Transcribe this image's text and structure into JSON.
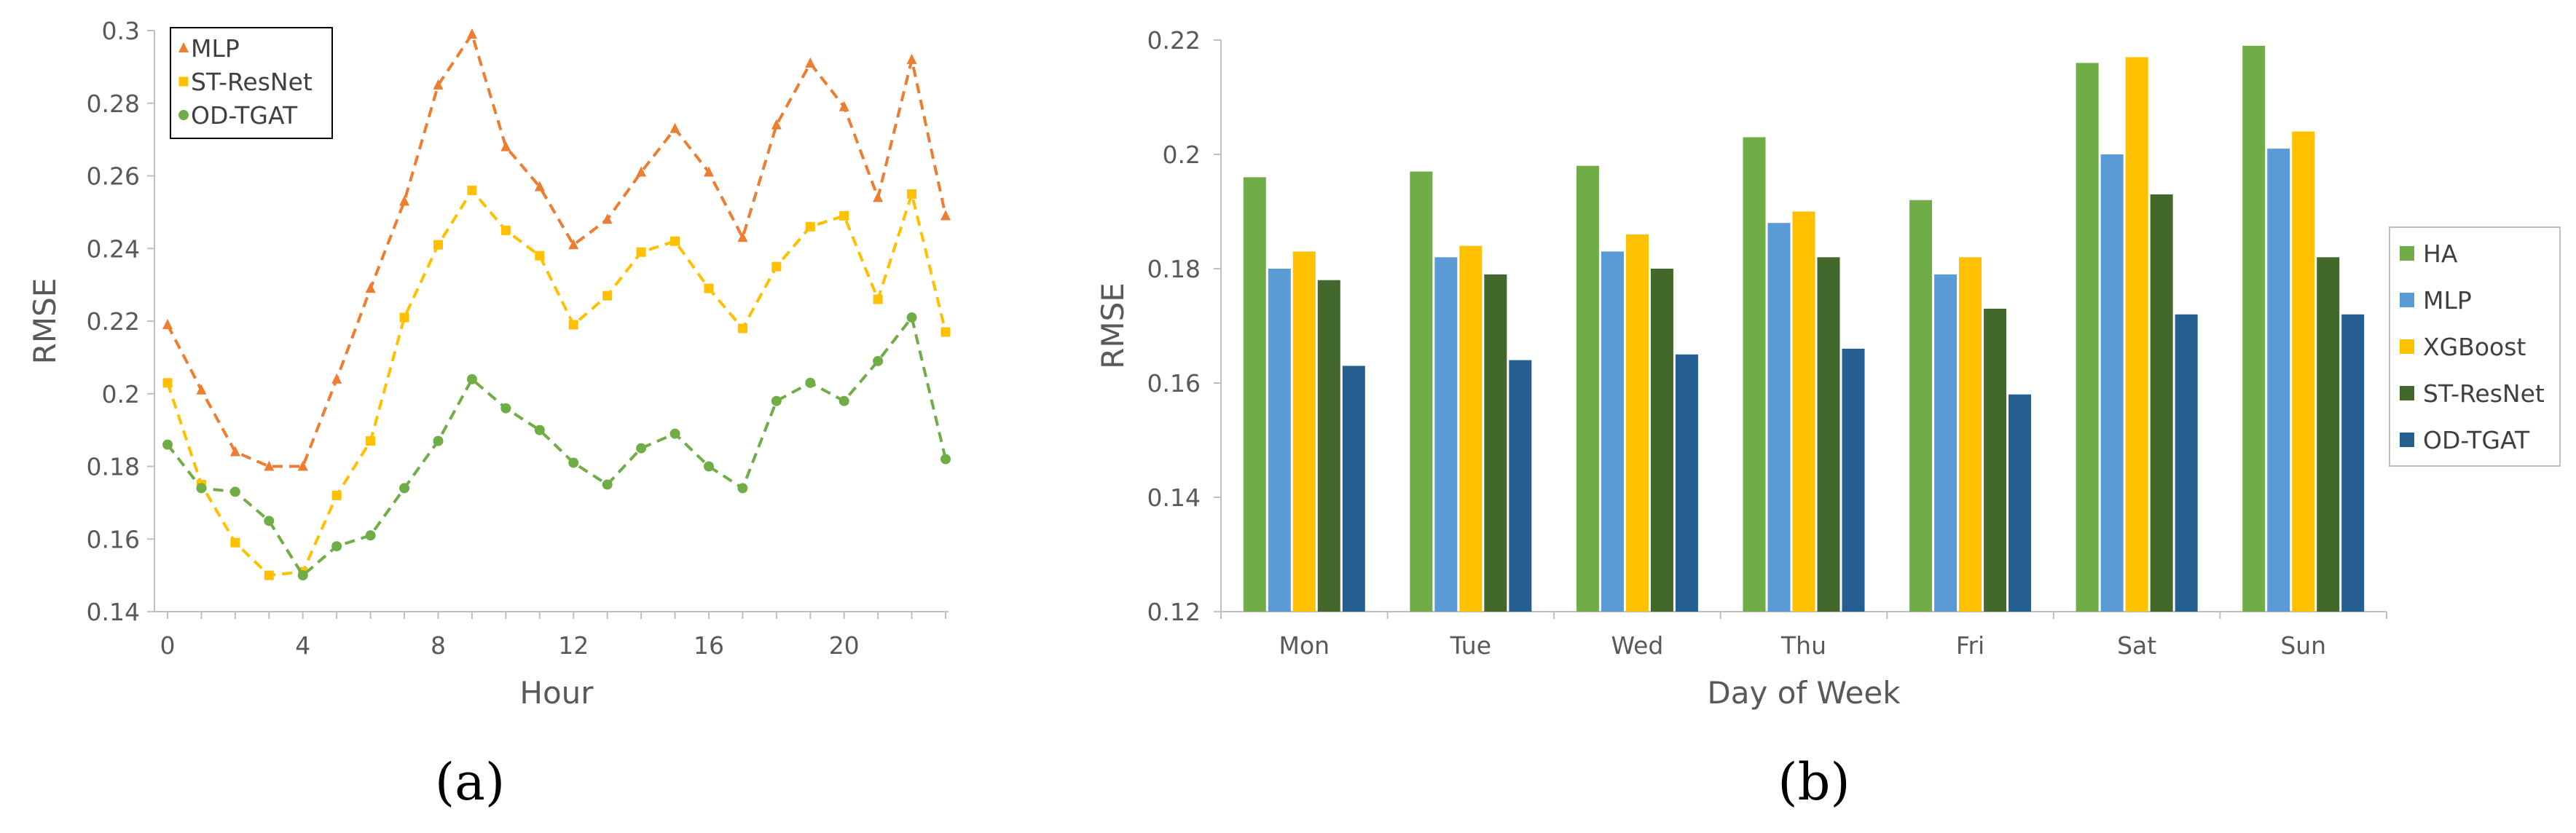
{
  "chart_data": [
    {
      "type": "line",
      "panel_label": "(a)",
      "title": "",
      "xlabel": "Hour",
      "ylabel": "RMSE",
      "ylim": [
        0.14,
        0.3
      ],
      "xlim": [
        0,
        23
      ],
      "yticks": [
        "0.14",
        "0.16",
        "0.18",
        "0.2",
        "0.22",
        "0.24",
        "0.26",
        "0.28",
        "0.3"
      ],
      "xticks": [
        "0",
        "4",
        "8",
        "12",
        "16",
        "20"
      ],
      "x": [
        0,
        1,
        2,
        3,
        4,
        5,
        6,
        7,
        8,
        9,
        10,
        11,
        12,
        13,
        14,
        15,
        16,
        17,
        18,
        19,
        20,
        21,
        22,
        23
      ],
      "legend_position": "top-left",
      "series": [
        {
          "name": "MLP",
          "color": "#ED7D31",
          "marker": "triangle",
          "values": [
            0.219,
            0.201,
            0.184,
            0.18,
            0.18,
            0.204,
            0.229,
            0.253,
            0.285,
            0.299,
            0.268,
            0.257,
            0.241,
            0.248,
            0.261,
            0.273,
            0.261,
            0.243,
            0.274,
            0.291,
            0.279,
            0.254,
            0.292,
            0.249
          ]
        },
        {
          "name": "ST-ResNet",
          "color": "#FFC000",
          "marker": "square",
          "values": [
            0.203,
            0.175,
            0.159,
            0.15,
            0.151,
            0.172,
            0.187,
            0.221,
            0.241,
            0.256,
            0.245,
            0.238,
            0.219,
            0.227,
            0.239,
            0.242,
            0.229,
            0.218,
            0.235,
            0.246,
            0.249,
            0.226,
            0.255,
            0.217
          ]
        },
        {
          "name": "OD-TGAT",
          "color": "#70AD47",
          "marker": "circle",
          "values": [
            0.186,
            0.174,
            0.173,
            0.165,
            0.15,
            0.158,
            0.161,
            0.174,
            0.187,
            0.204,
            0.196,
            0.19,
            0.181,
            0.175,
            0.185,
            0.189,
            0.18,
            0.174,
            0.198,
            0.203,
            0.198,
            0.209,
            0.221,
            0.182
          ]
        }
      ]
    },
    {
      "type": "bar",
      "panel_label": "(b)",
      "title": "",
      "xlabel": "Day of Week",
      "ylabel": "RMSE",
      "ylim": [
        0.12,
        0.22
      ],
      "yticks": [
        "0.12",
        "0.14",
        "0.16",
        "0.18",
        "0.2",
        "0.22"
      ],
      "categories": [
        "Mon",
        "Tue",
        "Wed",
        "Thu",
        "Fri",
        "Sat",
        "Sun"
      ],
      "legend_position": "right",
      "series": [
        {
          "name": "HA",
          "color": "#70AD47",
          "values": [
            0.196,
            0.197,
            0.198,
            0.203,
            0.192,
            0.216,
            0.219
          ]
        },
        {
          "name": "MLP",
          "color": "#5B9BD5",
          "values": [
            0.18,
            0.182,
            0.183,
            0.188,
            0.179,
            0.2,
            0.201
          ]
        },
        {
          "name": "XGBoost",
          "color": "#FFC000",
          "values": [
            0.183,
            0.184,
            0.186,
            0.19,
            0.182,
            0.217,
            0.204
          ]
        },
        {
          "name": "ST-ResNet",
          "color": "#43682B",
          "values": [
            0.178,
            0.179,
            0.18,
            0.182,
            0.173,
            0.193,
            0.182
          ]
        },
        {
          "name": "OD-TGAT",
          "color": "#255E91",
          "values": [
            0.163,
            0.164,
            0.165,
            0.166,
            0.158,
            0.172,
            0.172
          ]
        }
      ]
    }
  ]
}
